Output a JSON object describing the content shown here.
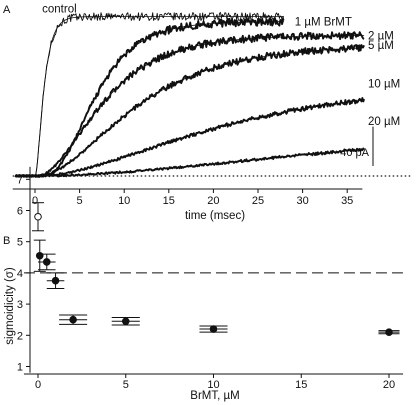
{
  "panels": {
    "a_label": "A",
    "b_label": "B"
  },
  "chart_data": [
    {
      "type": "line",
      "panel": "A",
      "xlabel": "time (msec)",
      "ylabel": "",
      "xlim": [
        -2.5,
        37
      ],
      "x_ticks": [
        0,
        5,
        10,
        15,
        20,
        25,
        30,
        35
      ],
      "x_tick_labels": [
        "0",
        "5",
        "10",
        "15",
        "20",
        "25",
        "30",
        "35"
      ],
      "units": {
        "baseline_label": "",
        "scale_bar": "40 pA",
        "scale_bar_pA": 40
      },
      "baseline": {
        "style": "dotted",
        "y_pA": 0
      },
      "series": [
        {
          "name": "control",
          "amplitude_pA": 162,
          "tau_ms": 0.75,
          "n": 2.0,
          "t_end_ms": 28
        },
        {
          "name": "1 µM BrMT",
          "amplitude_pA": 157,
          "tau_ms": 3.4,
          "n": 4.6,
          "t_end_ms": 28
        },
        {
          "name": "2 µM",
          "amplitude_pA": 143,
          "tau_ms": 5.2,
          "n": 2.5,
          "t_end_ms": 37
        },
        {
          "name": "5 µM",
          "amplitude_pA": 133,
          "tau_ms": 7.8,
          "n": 2.4,
          "t_end_ms": 37
        },
        {
          "name": "10 µM",
          "amplitude_pA": 94,
          "tau_ms": 15.0,
          "n": 2.2,
          "t_end_ms": 37
        },
        {
          "name": "20 µM",
          "amplitude_pA": 56,
          "tau_ms": 30.0,
          "n": 2.1,
          "t_end_ms": 37
        }
      ]
    },
    {
      "type": "scatter",
      "panel": "B",
      "xlabel": "BrMT, µM",
      "ylabel": "sigmoidicity (σ)",
      "xlim": [
        -0.8,
        20.8
      ],
      "ylim": [
        0.8,
        7.4
      ],
      "x_ticks": [
        0,
        5,
        10,
        15,
        20
      ],
      "y_ticks": [
        1,
        2,
        3,
        4,
        5,
        6,
        7
      ],
      "reference_line": {
        "y": 4.0,
        "style": "dashed"
      },
      "points": [
        {
          "x": 0,
          "y": 5.8,
          "yerr": 0.45,
          "xerr": 0,
          "open": true
        },
        {
          "x": 0.1,
          "y": 4.55,
          "yerr": 0.5,
          "xerr": 0,
          "open": false
        },
        {
          "x": 0.5,
          "y": 4.35,
          "yerr": 0.25,
          "xerr": 0.5,
          "open": false
        },
        {
          "x": 1,
          "y": 3.75,
          "yerr": 0.25,
          "xerr": 0.5,
          "open": false
        },
        {
          "x": 2,
          "y": 2.5,
          "yerr": 0.15,
          "xerr": 0.8,
          "open": false
        },
        {
          "x": 5,
          "y": 2.45,
          "yerr": 0.12,
          "xerr": 0.8,
          "open": false
        },
        {
          "x": 10,
          "y": 2.2,
          "yerr": 0.1,
          "xerr": 0.8,
          "open": false
        },
        {
          "x": 20,
          "y": 2.1,
          "yerr": 0.05,
          "xerr": 0.6,
          "open": false
        }
      ]
    }
  ]
}
